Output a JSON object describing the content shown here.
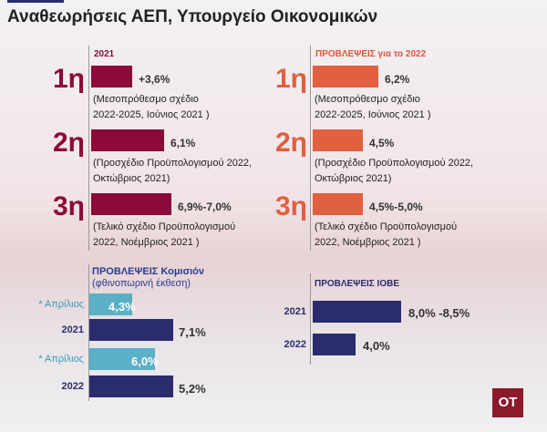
{
  "header": {
    "title": "Αναθεωρήσεις ΑΕΠ, Υπουργείο Οικονομικών"
  },
  "panels": [
    {
      "heading": "2021",
      "items": [
        {
          "rank": "1η",
          "label": "+3,6%",
          "note": [
            "(Μεσοπρόθεσμο σχέδιο",
            "2022-2025, Ιούνιος 2021 )"
          ]
        },
        {
          "rank": "2η",
          "label": "6,1%",
          "note": [
            "(Προσχέδιο Προϋπολογισμού 2022,",
            "Οκτώβριος 2021)"
          ]
        },
        {
          "rank": "3η",
          "label": "6,9%-7,0%",
          "note": [
            "(Τελικό σχέδιο Προϋπολογισμού",
            "2022, Νοέμβριος 2021 )"
          ]
        }
      ]
    },
    {
      "heading": "ΠΡΟΒΛΕΨΕΙΣ για το 2022",
      "items": [
        {
          "rank": "1η",
          "label": "6,2%",
          "note": [
            "(Μεσοπρόθεσμο σχέδιο",
            "2022-2025, Ιούνιος 2021 )"
          ]
        },
        {
          "rank": "2η",
          "label": "4,5%",
          "note": [
            "(Προσχέδιο Προϋπολογισμού 2022,",
            "Οκτώβριος 2021)"
          ]
        },
        {
          "rank": "3η",
          "label": "4,5%-5,0%",
          "note": [
            "(Τελικό σχέδιο Προϋπολογισμού",
            "2022, Νοέμβριος 2021 )"
          ]
        }
      ]
    }
  ],
  "commission": {
    "heading": "ΠΡΟΒΛΕΨΕΙΣ Κομισιόν",
    "subheading": "(φθινοπωρινή έκθεση)",
    "rows": [
      {
        "name": "* Απρίλιος",
        "label": "4,3%"
      },
      {
        "name": "2021",
        "label": "7,1%"
      },
      {
        "name": "* Απρίλιος",
        "label": "6,0%"
      },
      {
        "name": "2022",
        "label": "5,2%"
      }
    ]
  },
  "iobe": {
    "heading": "ΠΡΟΒΛΕΨΕΙΣ ΙΟΒΕ",
    "rows": [
      {
        "name": "2021",
        "label": "8,0% -8,5%"
      },
      {
        "name": "2022",
        "label": "4,0%"
      }
    ]
  },
  "logo": "OT"
}
